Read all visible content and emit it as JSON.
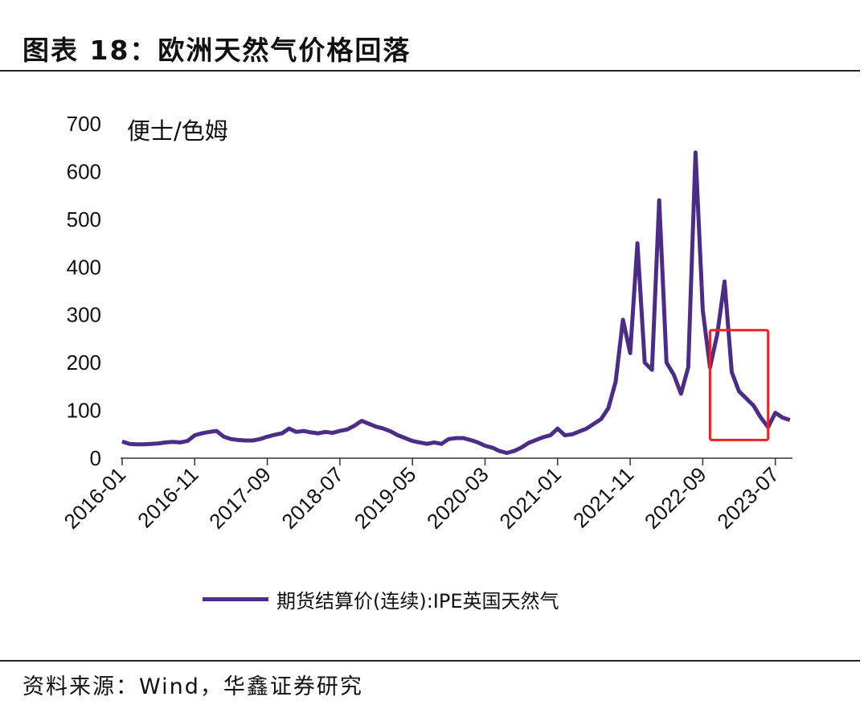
{
  "title": "图表 18：欧洲天然气价格回落",
  "source": "资料来源：Wind，华鑫证券研究",
  "chart_data": {
    "type": "line",
    "title": "图表 18：欧洲天然气价格回落",
    "ylabel": "便士/色姆",
    "xlabel": "",
    "ylim": [
      0,
      700
    ],
    "yticks": [
      "0",
      "100",
      "200",
      "300",
      "400",
      "500",
      "600",
      "700"
    ],
    "xticks": [
      "2016-01",
      "2016-11",
      "2017-09",
      "2018-07",
      "2019-05",
      "2020-03",
      "2021-01",
      "2021-11",
      "2022-09",
      "2023-07"
    ],
    "grid": false,
    "legend_position": "bottom",
    "color": "#4B2C86",
    "series": [
      {
        "name": "期货结算价(连续):IPE英国天然气",
        "x": [
          "2016-01",
          "2016-02",
          "2016-03",
          "2016-04",
          "2016-05",
          "2016-06",
          "2016-07",
          "2016-08",
          "2016-09",
          "2016-10",
          "2016-11",
          "2016-12",
          "2017-01",
          "2017-02",
          "2017-03",
          "2017-04",
          "2017-05",
          "2017-06",
          "2017-07",
          "2017-08",
          "2017-09",
          "2017-10",
          "2017-11",
          "2017-12",
          "2018-01",
          "2018-02",
          "2018-03",
          "2018-04",
          "2018-05",
          "2018-06",
          "2018-07",
          "2018-08",
          "2018-09",
          "2018-10",
          "2018-11",
          "2018-12",
          "2019-01",
          "2019-02",
          "2019-03",
          "2019-04",
          "2019-05",
          "2019-06",
          "2019-07",
          "2019-08",
          "2019-09",
          "2019-10",
          "2019-11",
          "2019-12",
          "2020-01",
          "2020-02",
          "2020-03",
          "2020-04",
          "2020-05",
          "2020-06",
          "2020-07",
          "2020-08",
          "2020-09",
          "2020-10",
          "2020-11",
          "2020-12",
          "2021-01",
          "2021-02",
          "2021-03",
          "2021-04",
          "2021-05",
          "2021-06",
          "2021-07",
          "2021-08",
          "2021-09",
          "2021-10",
          "2021-11",
          "2021-12",
          "2022-01",
          "2022-02",
          "2022-03",
          "2022-04",
          "2022-05",
          "2022-06",
          "2022-07",
          "2022-08",
          "2022-09",
          "2022-10",
          "2022-11",
          "2022-12",
          "2023-01",
          "2023-02",
          "2023-03",
          "2023-04",
          "2023-05",
          "2023-06",
          "2023-07",
          "2023-08",
          "2023-09"
        ],
        "values": [
          35,
          30,
          29,
          29,
          30,
          31,
          33,
          34,
          33,
          36,
          48,
          52,
          55,
          57,
          45,
          40,
          38,
          37,
          37,
          40,
          45,
          49,
          52,
          62,
          55,
          57,
          54,
          52,
          55,
          53,
          57,
          60,
          68,
          78,
          72,
          66,
          62,
          56,
          48,
          42,
          36,
          33,
          30,
          33,
          30,
          40,
          42,
          42,
          38,
          33,
          26,
          22,
          15,
          11,
          15,
          22,
          32,
          38,
          44,
          48,
          62,
          48,
          50,
          56,
          62,
          72,
          82,
          105,
          160,
          290,
          220,
          450,
          200,
          185,
          540,
          200,
          175,
          135,
          190,
          640,
          310,
          190,
          260,
          370,
          180,
          140,
          125,
          110,
          85,
          65,
          95,
          85,
          80
        ]
      }
    ],
    "annotations": [
      {
        "type": "rectangle",
        "color": "#EE2222",
        "x_range": [
          "2022-10",
          "2023-06"
        ],
        "y_range": [
          38,
          268
        ]
      }
    ]
  }
}
